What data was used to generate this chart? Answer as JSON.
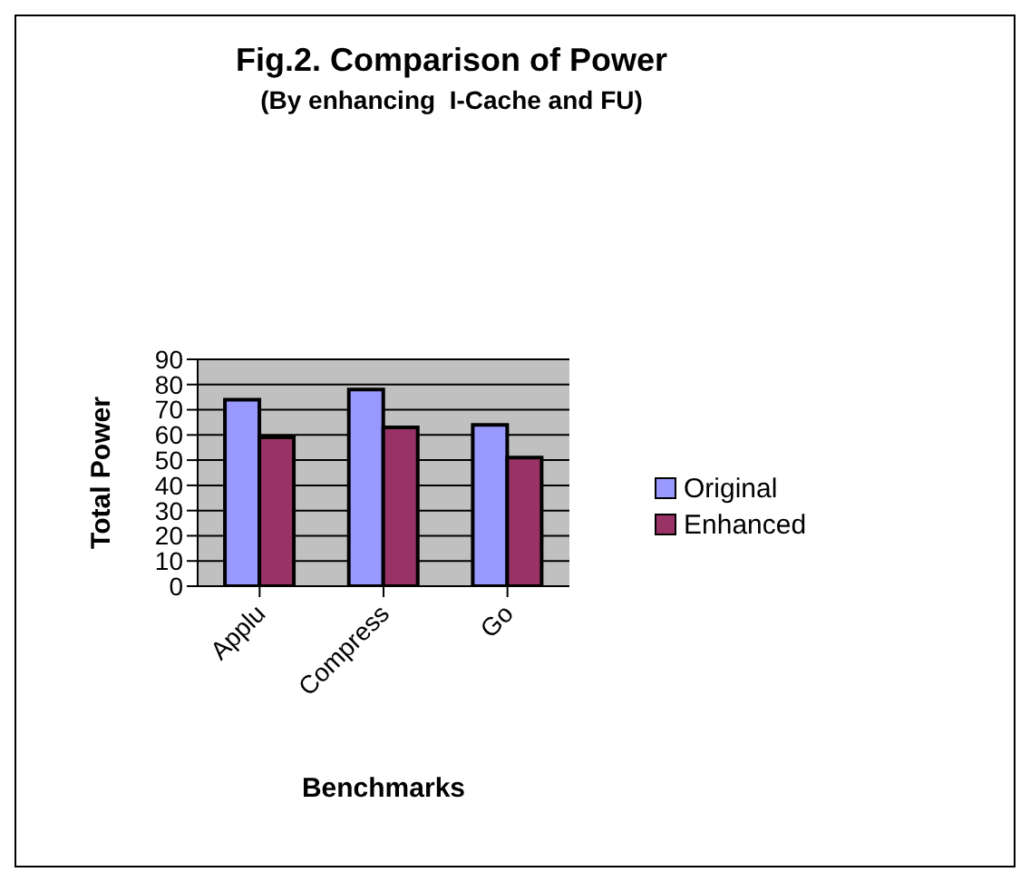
{
  "chart_data": {
    "type": "bar",
    "title": "Fig.2. Comparison of Power",
    "subtitle": "(By enhancing  I-Cache and FU)",
    "xlabel": "Benchmarks",
    "ylabel": "Total Power",
    "categories": [
      "Applu",
      "Compress",
      "Go"
    ],
    "series": [
      {
        "name": "Original",
        "color": "#9999ff",
        "values": [
          74,
          78,
          64
        ]
      },
      {
        "name": "Enhanced",
        "color": "#993366",
        "values": [
          59,
          63,
          51
        ]
      }
    ],
    "ylim": [
      0,
      90
    ],
    "yticks": [
      0,
      10,
      20,
      30,
      40,
      50,
      60,
      70,
      80,
      90
    ],
    "grid": "y",
    "legend": "right"
  }
}
